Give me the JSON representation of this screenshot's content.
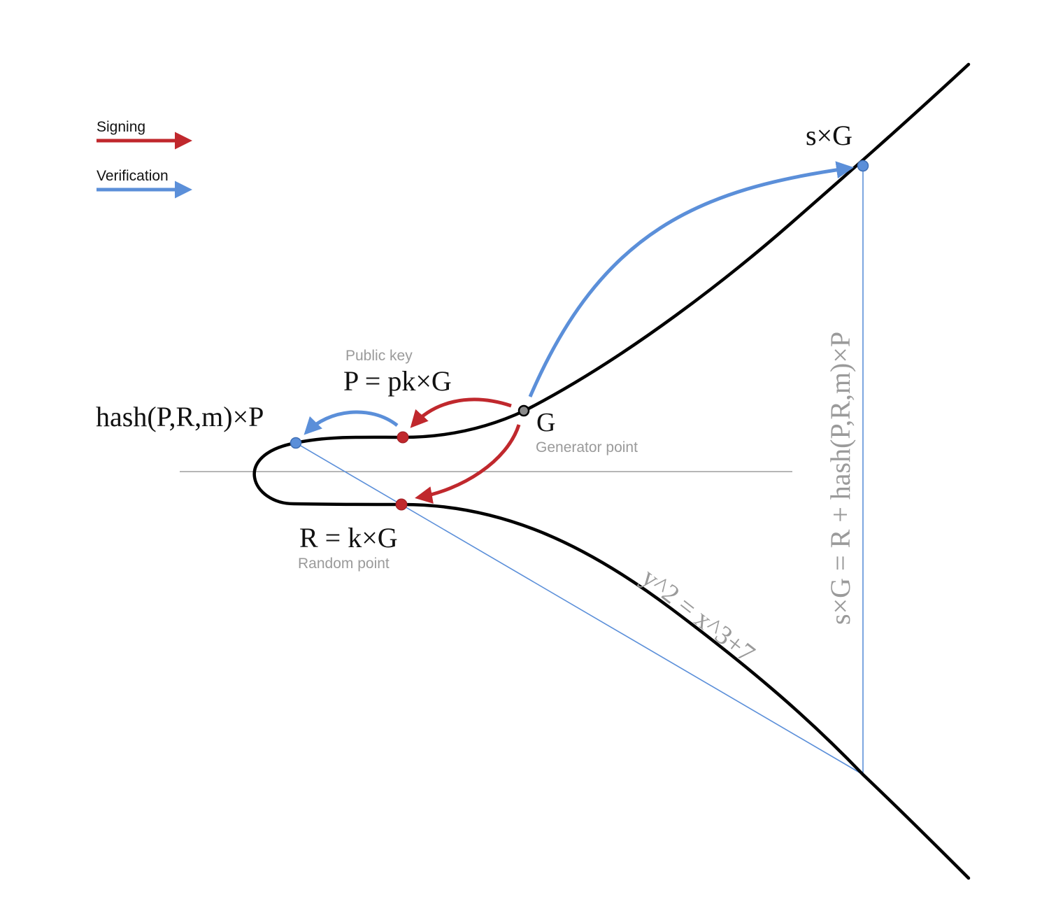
{
  "legend": {
    "signing_label": "Signing",
    "verification_label": "Verification"
  },
  "colors": {
    "signing": "#c0282d",
    "verification": "#5b8fd9",
    "curve": "#000000",
    "axis": "#8a8a8a",
    "muted_text": "#9a9a9a",
    "generator_point": "#8a8a8a"
  },
  "points": {
    "sG_label": "s×G",
    "G_label": "G",
    "G_caption": "Generator point",
    "P_label": "P = pk×G",
    "P_caption": "Public key",
    "hash_label": "hash(P,R,m)×P",
    "R_label": "R = k×G",
    "R_caption": "Random point"
  },
  "equations": {
    "curve": "y^2 = x^3+7",
    "verification": "s×G = R + hash(P,R,m)×P"
  }
}
